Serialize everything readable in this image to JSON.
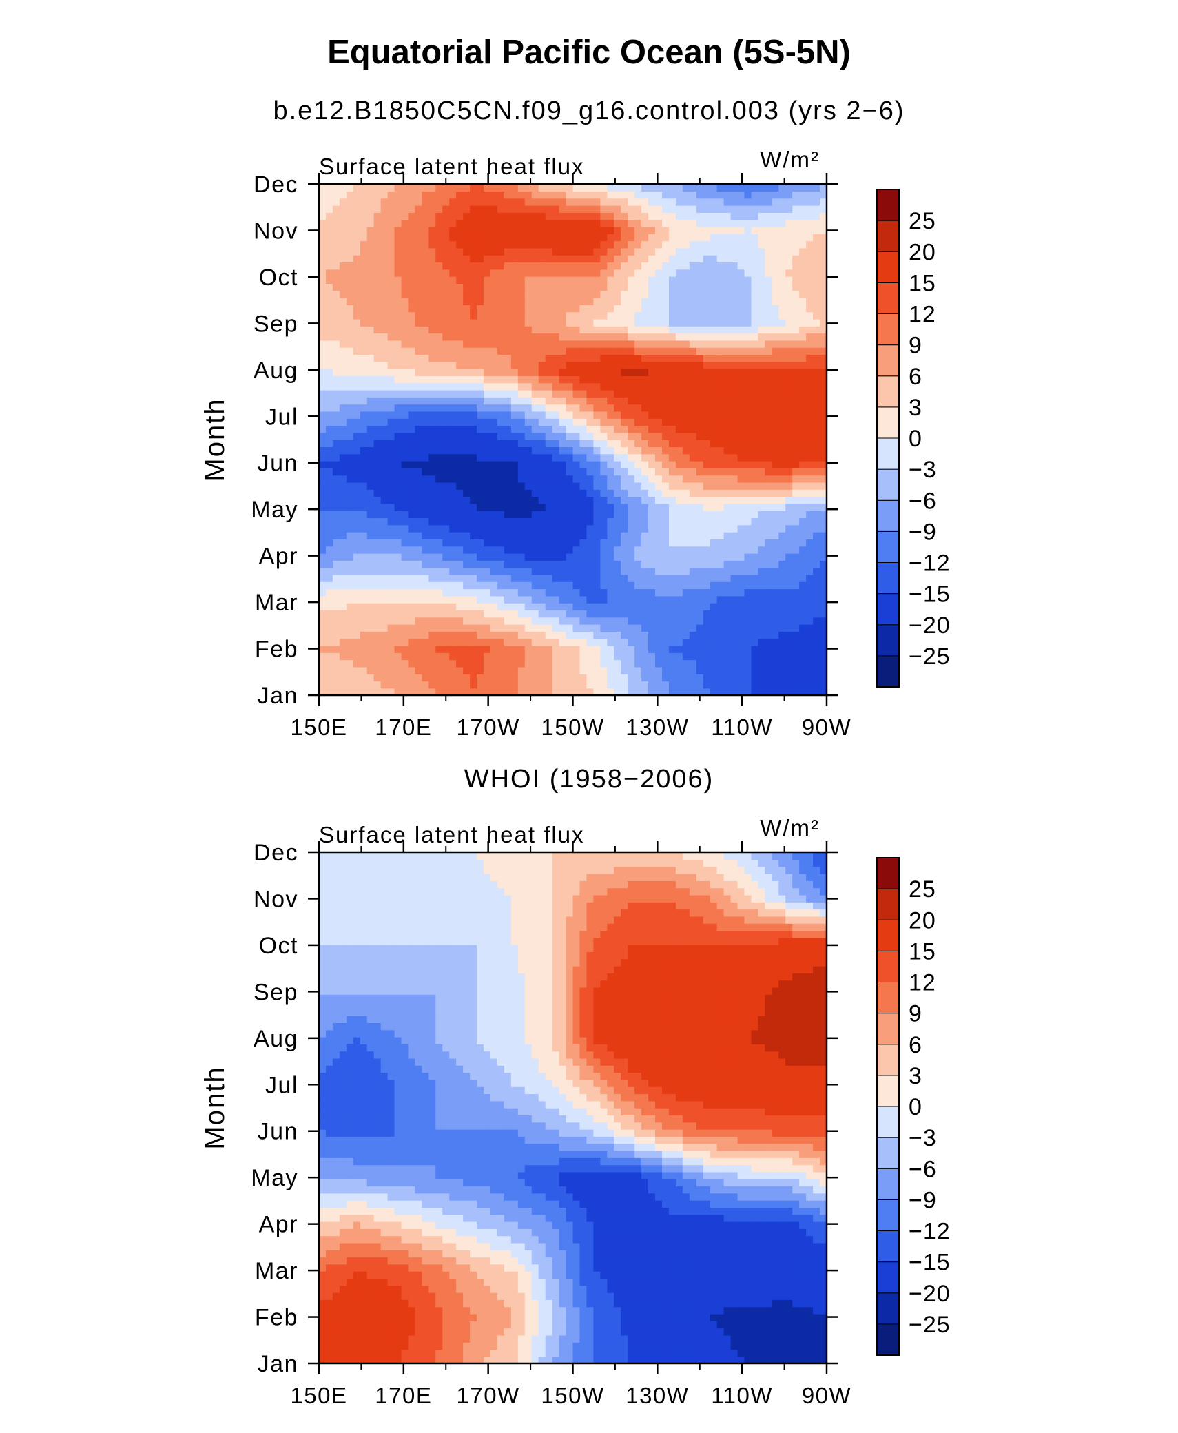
{
  "title": "Equatorial Pacific Ocean (5S-5N)",
  "colors": {
    "levels": [
      -25,
      -20,
      -15,
      -12,
      -9,
      -6,
      -3,
      0,
      3,
      6,
      9,
      12,
      15,
      20,
      25
    ],
    "bins": [
      "#0a1d7a",
      "#0d2aa6",
      "#1a3fd6",
      "#2f5de8",
      "#4f7df2",
      "#7a9df7",
      "#a7bffb",
      "#d6e4fd",
      "#fde7d8",
      "#fbc6ab",
      "#f89e7b",
      "#f4774e",
      "#ef512b",
      "#e53b12",
      "#c22a0b",
      "#8b0a0a"
    ]
  },
  "chart_data": [
    {
      "type": "heatmap",
      "panel_title": "b.e12.B1850C5CN.f09_g16.control.003 (yrs 2−6)",
      "left_label": "Surface latent heat flux",
      "units": "W/m²",
      "ylabel": "Month",
      "x_ticks": [
        "150E",
        "170E",
        "170W",
        "150W",
        "130W",
        "110W",
        "90W"
      ],
      "y_ticks": [
        "Jan",
        "Feb",
        "Mar",
        "Apr",
        "May",
        "Jun",
        "Jul",
        "Aug",
        "Sep",
        "Oct",
        "Nov",
        "Dec"
      ],
      "xlim": [
        "150E",
        "90W"
      ],
      "colorbar_labels": [
        "25",
        "20",
        "15",
        "12",
        "9",
        "6",
        "3",
        "0",
        "−3",
        "−6",
        "−9",
        "−12",
        "−15",
        "−20",
        "−25"
      ],
      "values": [
        [
          3,
          4,
          6,
          9,
          12,
          9,
          6,
          3,
          -3,
          -9,
          -12,
          -15,
          -18,
          -20
        ],
        [
          6,
          7,
          9,
          12,
          13,
          10,
          6,
          1,
          -6,
          -12,
          -13,
          -15,
          -16,
          -18
        ],
        [
          2,
          3,
          3,
          3,
          1,
          -3,
          -8,
          -13,
          -11,
          -10,
          -12,
          -14,
          -13,
          -14
        ],
        [
          -9,
          -6,
          -6,
          -9,
          -12,
          -15,
          -16,
          -13,
          -6,
          -3,
          -4,
          -6,
          -9,
          -12
        ],
        [
          -12,
          -12,
          -15,
          -18,
          -20,
          -21,
          -20,
          -16,
          -9,
          -3,
          0,
          -2,
          -4,
          -7
        ],
        [
          -15,
          -17,
          -20,
          -21,
          -21,
          -20,
          -17,
          -10,
          0,
          9,
          13,
          15,
          16,
          15
        ],
        [
          -6,
          -9,
          -12,
          -14,
          -13,
          -9,
          -2,
          6,
          13,
          17,
          18,
          18,
          19,
          20
        ],
        [
          0,
          1,
          3,
          5,
          6,
          9,
          15,
          19,
          21,
          19,
          17,
          16,
          16,
          15
        ],
        [
          4,
          6,
          8,
          10,
          12,
          10,
          7,
          3,
          0,
          -3,
          -4,
          -3,
          0,
          4
        ],
        [
          6,
          7,
          9,
          11,
          13,
          9,
          9,
          9,
          3,
          -3,
          -6,
          -3,
          3,
          6
        ],
        [
          3,
          5,
          9,
          13,
          19,
          19,
          20,
          20,
          10,
          3,
          1,
          0,
          2,
          3
        ],
        [
          2,
          3,
          6,
          9,
          12,
          9,
          3,
          0,
          -3,
          -6,
          -9,
          -12,
          -9,
          -6
        ]
      ]
    },
    {
      "type": "heatmap",
      "panel_title": "WHOI (1958−2006)",
      "left_label": "Surface latent heat flux",
      "units": "W/m²",
      "ylabel": "Month",
      "x_ticks": [
        "150E",
        "170E",
        "170W",
        "150W",
        "130W",
        "110W",
        "90W"
      ],
      "y_ticks": [
        "Jan",
        "Feb",
        "Mar",
        "Apr",
        "May",
        "Jun",
        "Jul",
        "Aug",
        "Sep",
        "Oct",
        "Nov",
        "Dec"
      ],
      "xlim": [
        "150E",
        "90W"
      ],
      "colorbar_labels": [
        "25",
        "20",
        "15",
        "12",
        "9",
        "6",
        "3",
        "0",
        "−3",
        "−6",
        "−9",
        "−12",
        "−15",
        "−20",
        "−25"
      ],
      "values": [
        [
          15,
          16,
          15,
          12,
          7,
          3,
          -6,
          -12,
          -15,
          -17,
          -19,
          -20,
          -21,
          -23
        ],
        [
          16,
          18,
          17,
          13,
          9,
          6,
          -3,
          -12,
          -16,
          -17,
          -20,
          -21,
          -21,
          -20
        ],
        [
          12,
          15,
          14,
          10,
          6,
          3,
          -6,
          -15,
          -17,
          -17,
          -18,
          -17,
          -18,
          -17
        ],
        [
          3,
          6,
          3,
          0,
          -3,
          -6,
          -9,
          -15,
          -17,
          -16,
          -17,
          -16,
          -16,
          -13
        ],
        [
          -6,
          -7,
          -8,
          -9,
          -10,
          -12,
          -15,
          -18,
          -17,
          -12,
          -6,
          -3,
          -3,
          3
        ],
        [
          -12,
          -13,
          -12,
          -9,
          -9,
          -9,
          -6,
          -3,
          3,
          9,
          12,
          12,
          13,
          13
        ],
        [
          -13,
          -15,
          -12,
          -9,
          -6,
          -3,
          0,
          6,
          13,
          17,
          18,
          18,
          19,
          19
        ],
        [
          -9,
          -12,
          -9,
          -6,
          -3,
          -1,
          3,
          15,
          19,
          20,
          18,
          20,
          21,
          22
        ],
        [
          -6,
          -6,
          -6,
          -6,
          -3,
          -1,
          3,
          15,
          17,
          18,
          17,
          19,
          21,
          23
        ],
        [
          -3,
          -3,
          -3,
          -3,
          -3,
          0,
          3,
          12,
          15,
          15,
          15,
          15,
          17,
          18
        ],
        [
          -3,
          -3,
          -3,
          -3,
          -1,
          0,
          3,
          9,
          12,
          12,
          9,
          3,
          -3,
          -9
        ],
        [
          -3,
          -1,
          0,
          0,
          0,
          2,
          3,
          3,
          3,
          3,
          1,
          -3,
          -9,
          -15
        ]
      ]
    }
  ]
}
